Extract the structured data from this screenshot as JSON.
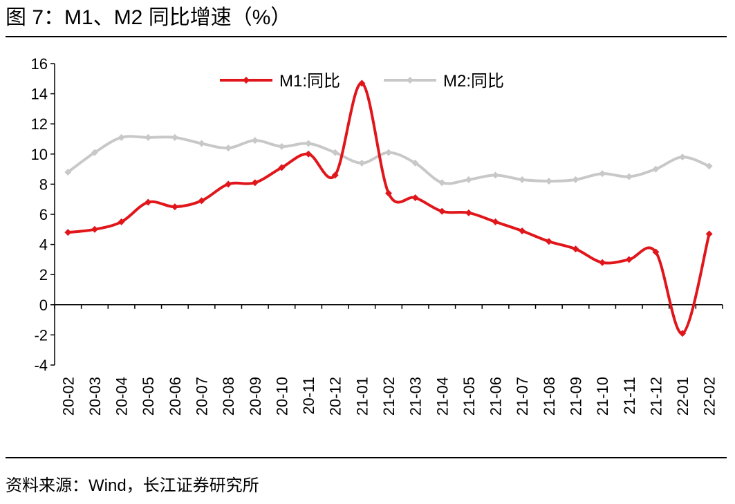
{
  "figure": {
    "title": "图  7：M1、M2 同比增速（%）",
    "source": "资料来源：Wind，长江证券研究所"
  },
  "chart_data": {
    "type": "line",
    "title": "M1、M2 同比增速（%）",
    "xlabel": "",
    "ylabel": "",
    "ylim": [
      -4,
      16
    ],
    "yticks": [
      -4,
      -2,
      0,
      2,
      4,
      6,
      8,
      10,
      12,
      14,
      16
    ],
    "grid": false,
    "legend_position": "top-center",
    "categories": [
      "20-02",
      "20-03",
      "20-04",
      "20-05",
      "20-06",
      "20-07",
      "20-08",
      "20-09",
      "20-10",
      "20-11",
      "20-12",
      "21-01",
      "21-02",
      "21-03",
      "21-04",
      "21-05",
      "21-06",
      "21-07",
      "21-08",
      "21-09",
      "21-10",
      "21-11",
      "21-12",
      "22-01",
      "22-02"
    ],
    "series": [
      {
        "name": "M1:同比",
        "color": "#E0161B",
        "values": [
          4.8,
          5.0,
          5.5,
          6.8,
          6.5,
          6.9,
          8.0,
          8.1,
          9.1,
          10.0,
          8.6,
          14.7,
          7.4,
          7.1,
          6.2,
          6.1,
          5.5,
          4.9,
          4.2,
          3.7,
          2.8,
          3.0,
          3.5,
          -1.9,
          4.7
        ]
      },
      {
        "name": "M2:同比",
        "color": "#C8C8C8",
        "values": [
          8.8,
          10.1,
          11.1,
          11.1,
          11.1,
          10.7,
          10.4,
          10.9,
          10.5,
          10.7,
          10.1,
          9.4,
          10.1,
          9.4,
          8.1,
          8.3,
          8.6,
          8.3,
          8.2,
          8.3,
          8.7,
          8.5,
          9.0,
          9.8,
          9.2
        ]
      }
    ]
  }
}
